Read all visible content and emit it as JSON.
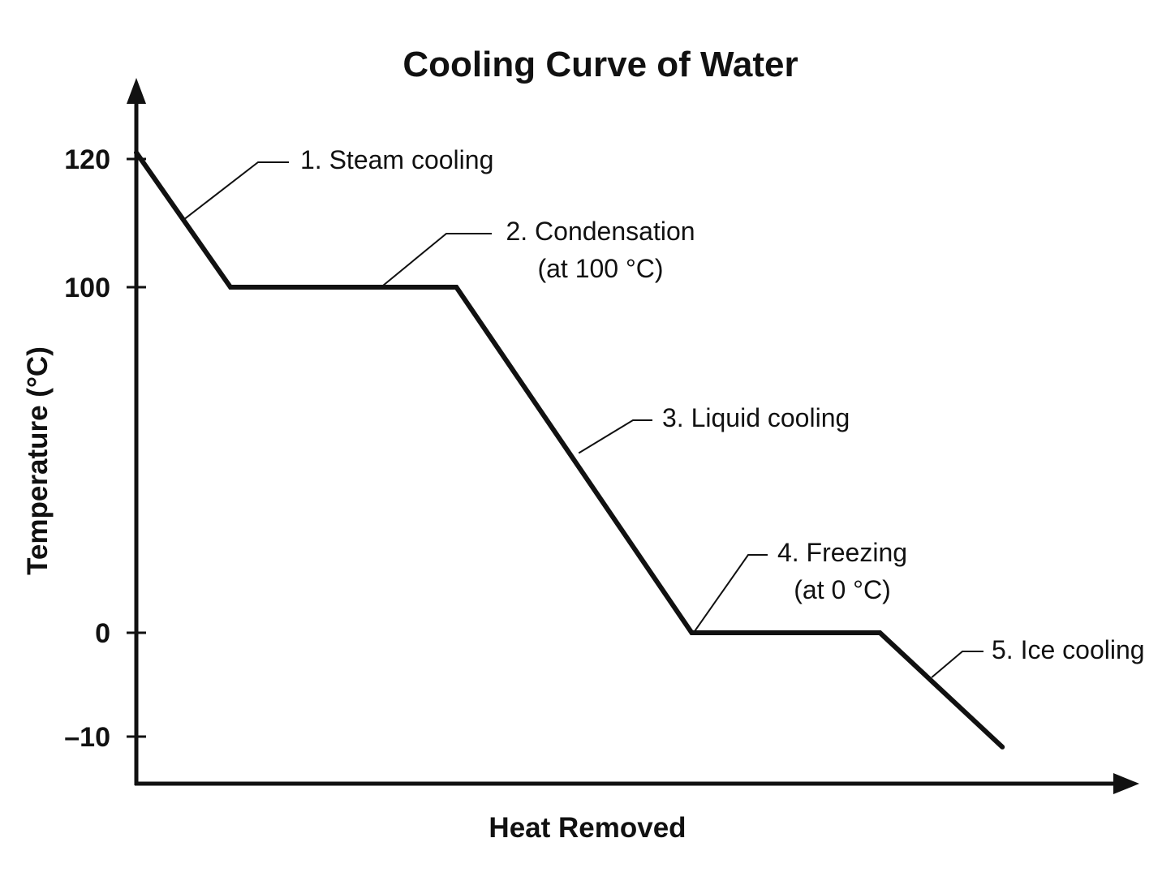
{
  "chart_data": {
    "type": "line",
    "title": "Cooling Curve of Water",
    "xlabel": "Heat Removed",
    "ylabel": "Temperature (°C)",
    "yticks": [
      {
        "value": 120,
        "label": "120"
      },
      {
        "value": 100,
        "label": "100"
      },
      {
        "value": 0,
        "label": "0"
      },
      {
        "value": -10,
        "label": "–10"
      }
    ],
    "grid": false,
    "legend": "none",
    "series": [
      {
        "x": [
          0,
          1.0,
          3.4,
          5.9,
          7.9,
          9.2
        ],
        "y": [
          121,
          100,
          100,
          0,
          0,
          -11
        ]
      }
    ],
    "annotations": [
      {
        "lines": [
          "1. Steam cooling"
        ],
        "x": 0.5,
        "y": 110.5
      },
      {
        "lines": [
          "2. Condensation",
          "(at 100 °C)"
        ],
        "x": 2.6,
        "y": 100
      },
      {
        "lines": [
          "3. Liquid cooling"
        ],
        "x": 4.7,
        "y": 52
      },
      {
        "lines": [
          "4. Freezing",
          "(at 0 °C)"
        ],
        "x": 5.92,
        "y": 0
      },
      {
        "lines": [
          "5. Ice cooling"
        ],
        "x": 8.45,
        "y": -4.3
      }
    ]
  }
}
